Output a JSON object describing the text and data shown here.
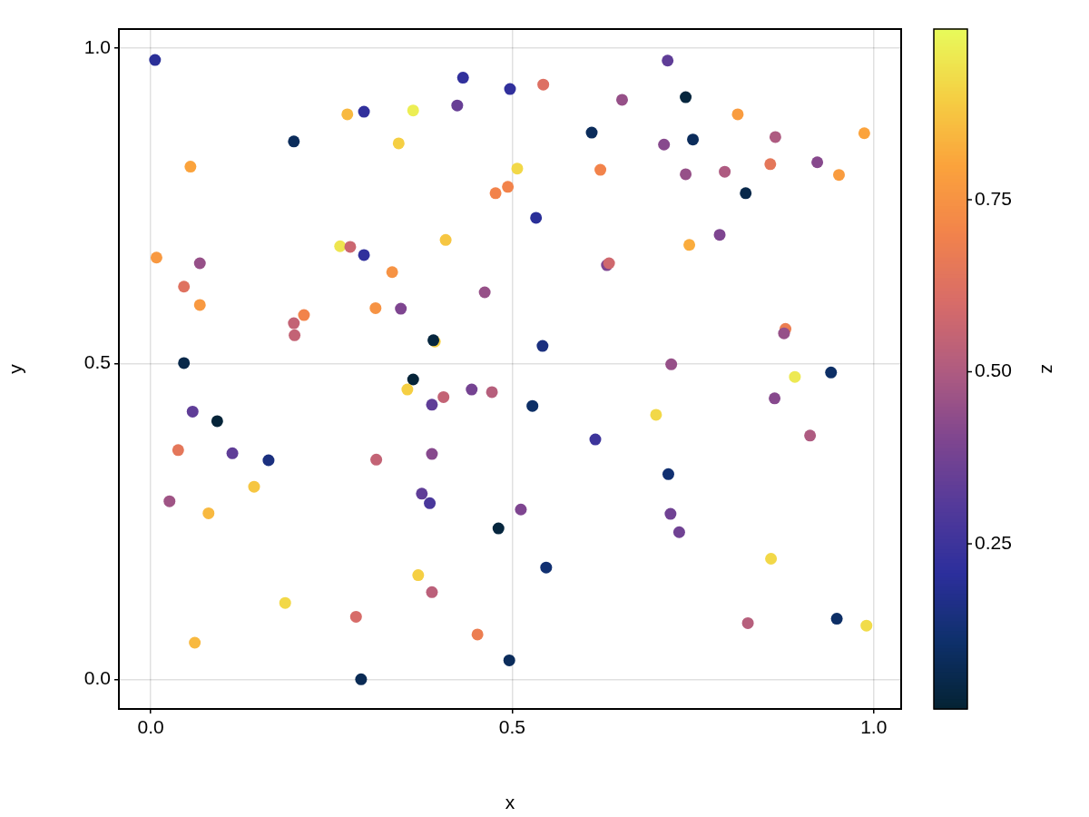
{
  "chart_data": {
    "type": "scatter",
    "xlabel": "x",
    "ylabel": "y",
    "clabel": "z",
    "marker": "circle",
    "grid": true,
    "xlim": [
      -0.044,
      1.038
    ],
    "ylim": [
      -0.047,
      1.03
    ],
    "xticks": [
      {
        "value": 0,
        "label": "0.0"
      },
      {
        "value": 0.5,
        "label": "0.5"
      },
      {
        "value": 1,
        "label": "1.0"
      }
    ],
    "yticks": [
      {
        "value": 0,
        "label": "0.0"
      },
      {
        "value": 0.5,
        "label": "0.5"
      },
      {
        "value": 1,
        "label": "1.0"
      }
    ],
    "clim": [
      0.01,
      0.998
    ],
    "cticks": [
      {
        "value": 0.25,
        "label": "0.25"
      },
      {
        "value": 0.5,
        "label": "0.50"
      },
      {
        "value": 0.75,
        "label": "0.75"
      }
    ],
    "x": [
      0.006,
      0.272,
      0.295,
      0.198,
      0.055,
      0.363,
      0.432,
      0.424,
      0.497,
      0.543,
      0.652,
      0.343,
      0.61,
      0.507,
      0.622,
      0.477,
      0.494,
      0.533,
      0.408,
      0.334,
      0.462,
      0.346,
      0.311,
      0.393,
      0.391,
      0.542,
      0.631,
      0.634,
      0.008,
      0.068,
      0.046,
      0.068,
      0.262,
      0.276,
      0.295,
      0.212,
      0.198,
      0.199,
      0.046,
      0.715,
      0.74,
      0.812,
      0.987,
      0.71,
      0.75,
      0.864,
      0.857,
      0.922,
      0.952,
      0.74,
      0.794,
      0.823,
      0.787,
      0.745,
      0.878,
      0.876,
      0.72,
      0.058,
      0.092,
      0.038,
      0.113,
      0.163,
      0.312,
      0.143,
      0.026,
      0.08,
      0.186,
      0.284,
      0.061,
      0.291,
      0.363,
      0.355,
      0.405,
      0.389,
      0.444,
      0.472,
      0.528,
      0.615,
      0.389,
      0.375,
      0.386,
      0.512,
      0.481,
      0.547,
      0.37,
      0.389,
      0.452,
      0.496,
      0.891,
      0.941,
      0.863,
      0.699,
      0.912,
      0.716,
      0.719,
      0.731,
      0.858,
      0.826,
      0.949,
      0.99
    ],
    "values": [
      0.981,
      0.895,
      0.899,
      0.852,
      0.812,
      0.901,
      0.953,
      0.909,
      0.935,
      0.942,
      0.918,
      0.849,
      0.866,
      0.809,
      0.807,
      0.77,
      0.78,
      0.731,
      0.696,
      0.645,
      0.613,
      0.587,
      0.588,
      0.535,
      0.537,
      0.528,
      0.656,
      0.659,
      0.668,
      0.659,
      0.622,
      0.593,
      0.686,
      0.685,
      0.672,
      0.577,
      0.564,
      0.545,
      0.501,
      0.98,
      0.922,
      0.895,
      0.865,
      0.847,
      0.855,
      0.859,
      0.816,
      0.819,
      0.799,
      0.8,
      0.804,
      0.77,
      0.704,
      0.688,
      0.555,
      0.548,
      0.499,
      0.424,
      0.409,
      0.363,
      0.358,
      0.347,
      0.348,
      0.305,
      0.282,
      0.263,
      0.121,
      0.099,
      0.058,
      0.0,
      0.475,
      0.459,
      0.447,
      0.435,
      0.459,
      0.455,
      0.433,
      0.38,
      0.357,
      0.294,
      0.279,
      0.269,
      0.239,
      0.177,
      0.165,
      0.138,
      0.071,
      0.03,
      0.479,
      0.486,
      0.445,
      0.419,
      0.386,
      0.325,
      0.262,
      0.233,
      0.191,
      0.089,
      0.096,
      0.085
    ],
    "cvalues": [
      0.2,
      0.85,
      0.22,
      0.08,
      0.8,
      0.97,
      0.22,
      0.35,
      0.22,
      0.62,
      0.45,
      0.9,
      0.08,
      0.92,
      0.7,
      0.7,
      0.7,
      0.2,
      0.88,
      0.75,
      0.45,
      0.4,
      0.75,
      0.9,
      0.03,
      0.15,
      0.4,
      0.58,
      0.77,
      0.45,
      0.63,
      0.77,
      0.95,
      0.57,
      0.22,
      0.7,
      0.55,
      0.55,
      0.05,
      0.33,
      0.03,
      0.78,
      0.8,
      0.42,
      0.08,
      0.5,
      0.65,
      0.42,
      0.78,
      0.45,
      0.5,
      0.05,
      0.4,
      0.82,
      0.68,
      0.45,
      0.45,
      0.33,
      0.02,
      0.65,
      0.33,
      0.15,
      0.55,
      0.88,
      0.47,
      0.85,
      0.92,
      0.6,
      0.85,
      0.07,
      0.02,
      0.9,
      0.55,
      0.33,
      0.38,
      0.52,
      0.1,
      0.25,
      0.42,
      0.33,
      0.28,
      0.4,
      0.03,
      0.12,
      0.9,
      0.53,
      0.68,
      0.08,
      0.96,
      0.1,
      0.42,
      0.92,
      0.5,
      0.12,
      0.37,
      0.37,
      0.92,
      0.52,
      0.1,
      0.93
    ]
  }
}
